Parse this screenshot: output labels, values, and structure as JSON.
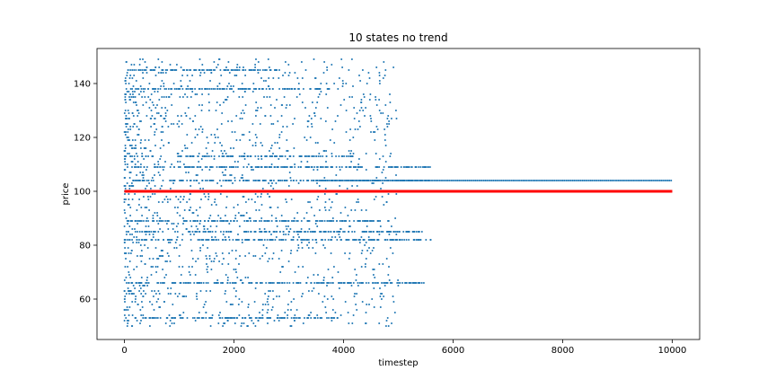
{
  "chart_data": {
    "type": "scatter",
    "title": "10 states no trend",
    "xlabel": "timestep",
    "ylabel": "price",
    "xlim": [
      -500,
      10500
    ],
    "ylim": [
      45,
      153
    ],
    "xticks": [
      0,
      2000,
      4000,
      6000,
      8000,
      10000
    ],
    "yticks": [
      60,
      80,
      100,
      120,
      140
    ],
    "grid": false,
    "colors": {
      "points": "#1f77b4",
      "reference_line": "#ff0000"
    },
    "reference_line": {
      "y": 100,
      "x_range": [
        0,
        10000
      ]
    },
    "price_states": [
      {
        "price": 53,
        "until": 3900
      },
      {
        "price": 66,
        "until": 5500
      },
      {
        "price": 82,
        "until": 5600
      },
      {
        "price": 85,
        "until": 5450
      },
      {
        "price": 89,
        "until": 4700
      },
      {
        "price": 104,
        "until": 10000
      },
      {
        "price": 109,
        "until": 5600
      },
      {
        "price": 113,
        "until": 4200
      },
      {
        "price": 138,
        "until": 3800
      },
      {
        "price": 145,
        "until": 2800
      }
    ],
    "point_density_note": "dense scatter of prices between ~50 and ~149 for timesteps 0-5600, converging to 104 for timesteps 5600-10000"
  }
}
